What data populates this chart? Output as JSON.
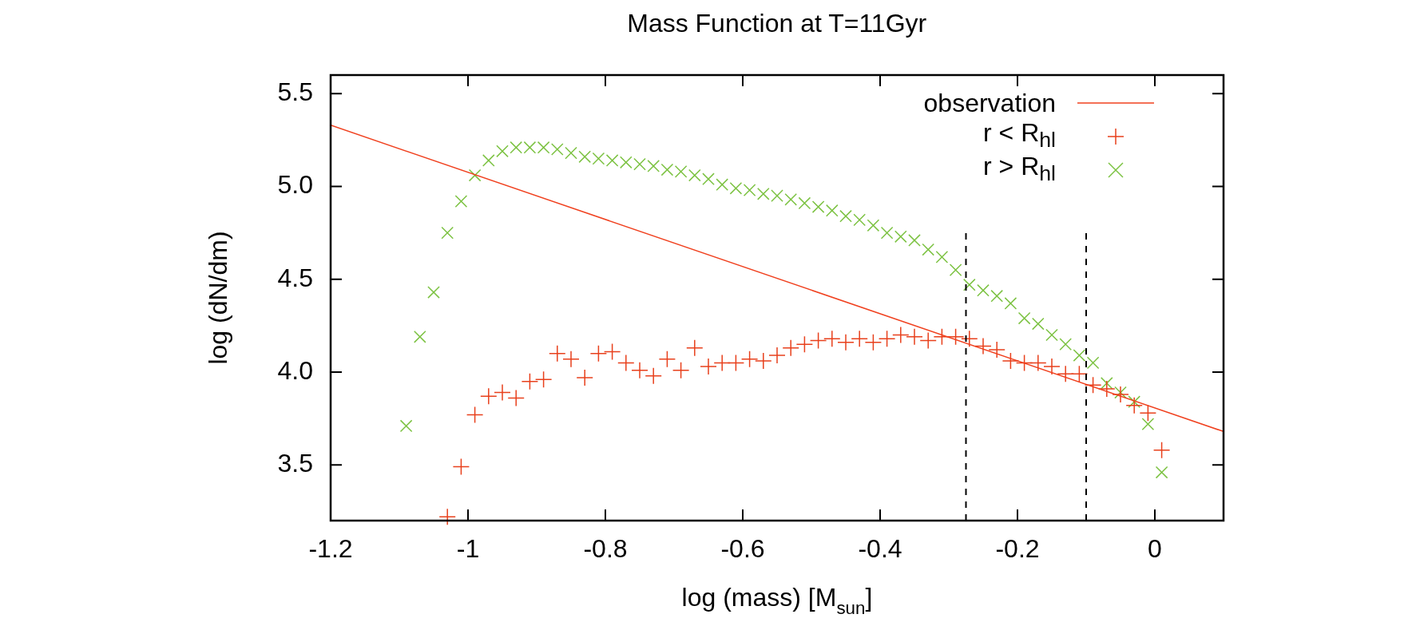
{
  "chart_data": {
    "type": "scatter",
    "title": "Mass Function at T=11Gyr",
    "xlabel": "log (mass) [M$_{sun}$]",
    "ylabel": "log (dN/dm)",
    "xlim": [
      -1.2,
      0.1
    ],
    "xticks": [
      -1.2,
      -1,
      -0.8,
      -0.6,
      -0.4,
      -0.2,
      0
    ],
    "ylim": [
      3.2,
      5.6
    ],
    "yticks": [
      3.5,
      {
        "value": 4,
        "label": "4.0"
      },
      4.5,
      {
        "value": 5,
        "label": "5.0"
      },
      5.5
    ],
    "legend": "top right",
    "series": [
      {
        "name": "observation",
        "type": "line",
        "marker": "none",
        "line_style": "solid",
        "color": "#f0401e",
        "x": [
          -1.2,
          0.1
        ],
        "values": [
          5.33,
          3.68
        ]
      },
      {
        "name": "r < R$_{hl}$",
        "type": "scatter",
        "marker": "plus",
        "color": "#e8401c",
        "x": [
          -1.03,
          -1.01,
          -0.99,
          -0.97,
          -0.95,
          -0.93,
          -0.91,
          -0.89,
          -0.87,
          -0.85,
          -0.83,
          -0.81,
          -0.79,
          -0.77,
          -0.75,
          -0.73,
          -0.71,
          -0.69,
          -0.67,
          -0.65,
          -0.63,
          -0.61,
          -0.59,
          -0.57,
          -0.55,
          -0.53,
          -0.51,
          -0.49,
          -0.47,
          -0.45,
          -0.43,
          -0.41,
          -0.39,
          -0.37,
          -0.35,
          -0.33,
          -0.31,
          -0.29,
          -0.27,
          -0.25,
          -0.23,
          -0.21,
          -0.19,
          -0.17,
          -0.15,
          -0.13,
          -0.11,
          -0.09,
          -0.07,
          -0.05,
          -0.03,
          -0.01,
          0.01
        ],
        "values": [
          3.22,
          3.49,
          3.77,
          3.87,
          3.89,
          3.86,
          3.95,
          3.96,
          4.1,
          4.07,
          3.97,
          4.1,
          4.11,
          4.05,
          4.01,
          3.98,
          4.07,
          4.01,
          4.13,
          4.03,
          4.05,
          4.05,
          4.07,
          4.06,
          4.09,
          4.13,
          4.15,
          4.17,
          4.18,
          4.16,
          4.18,
          4.16,
          4.18,
          4.2,
          4.19,
          4.17,
          4.19,
          4.19,
          4.18,
          4.14,
          4.12,
          4.06,
          4.05,
          4.05,
          4.03,
          3.99,
          3.99,
          3.93,
          3.91,
          3.88,
          3.82,
          3.78,
          3.58
        ]
      },
      {
        "name": "r > R$_{hl}$",
        "type": "scatter",
        "marker": "cross",
        "color": "#7cc242",
        "x": [
          -1.09,
          -1.07,
          -1.05,
          -1.03,
          -1.01,
          -0.99,
          -0.97,
          -0.95,
          -0.93,
          -0.91,
          -0.89,
          -0.87,
          -0.85,
          -0.83,
          -0.81,
          -0.79,
          -0.77,
          -0.75,
          -0.73,
          -0.71,
          -0.69,
          -0.67,
          -0.65,
          -0.63,
          -0.61,
          -0.59,
          -0.57,
          -0.55,
          -0.53,
          -0.51,
          -0.49,
          -0.47,
          -0.45,
          -0.43,
          -0.41,
          -0.39,
          -0.37,
          -0.35,
          -0.33,
          -0.31,
          -0.29,
          -0.27,
          -0.25,
          -0.23,
          -0.21,
          -0.19,
          -0.17,
          -0.15,
          -0.13,
          -0.11,
          -0.09,
          -0.07,
          -0.05,
          -0.03,
          -0.01,
          0.01
        ],
        "values": [
          3.71,
          4.19,
          4.43,
          4.75,
          4.92,
          5.06,
          5.14,
          5.19,
          5.21,
          5.21,
          5.21,
          5.2,
          5.18,
          5.16,
          5.15,
          5.14,
          5.13,
          5.12,
          5.11,
          5.09,
          5.08,
          5.06,
          5.04,
          5.01,
          4.99,
          4.98,
          4.96,
          4.95,
          4.93,
          4.91,
          4.89,
          4.87,
          4.84,
          4.82,
          4.79,
          4.75,
          4.73,
          4.71,
          4.66,
          4.62,
          4.55,
          4.47,
          4.44,
          4.41,
          4.37,
          4.29,
          4.26,
          4.2,
          4.15,
          4.09,
          4.05,
          3.94,
          3.89,
          3.84,
          3.72,
          3.46
        ]
      }
    ],
    "ref_lines": [
      {
        "axis": "x",
        "value": -0.275,
        "color": "#000000",
        "line_style": "dashed"
      },
      {
        "axis": "x",
        "value": -0.1,
        "color": "#000000",
        "line_style": "dashed"
      }
    ]
  }
}
